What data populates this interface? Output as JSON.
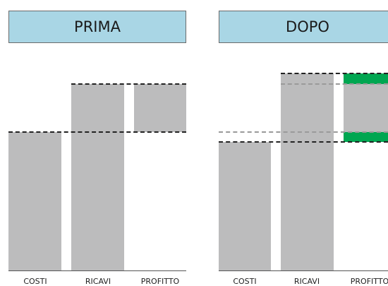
{
  "panels": {
    "before": {
      "title": "PRIMA",
      "categories": [
        "COSTI",
        "RICAVI",
        "PROFITTO"
      ]
    },
    "after": {
      "title": "DOPO",
      "categories": [
        "COSTI",
        "RICAVI",
        "PROFITTO"
      ]
    }
  },
  "colors": {
    "header_fill": "#a9d6e5",
    "bar": "#bcbcbd",
    "profit_change": "#00a651",
    "previous_level_line": "#9a9a9a",
    "current_level_line": "#222222"
  }
}
